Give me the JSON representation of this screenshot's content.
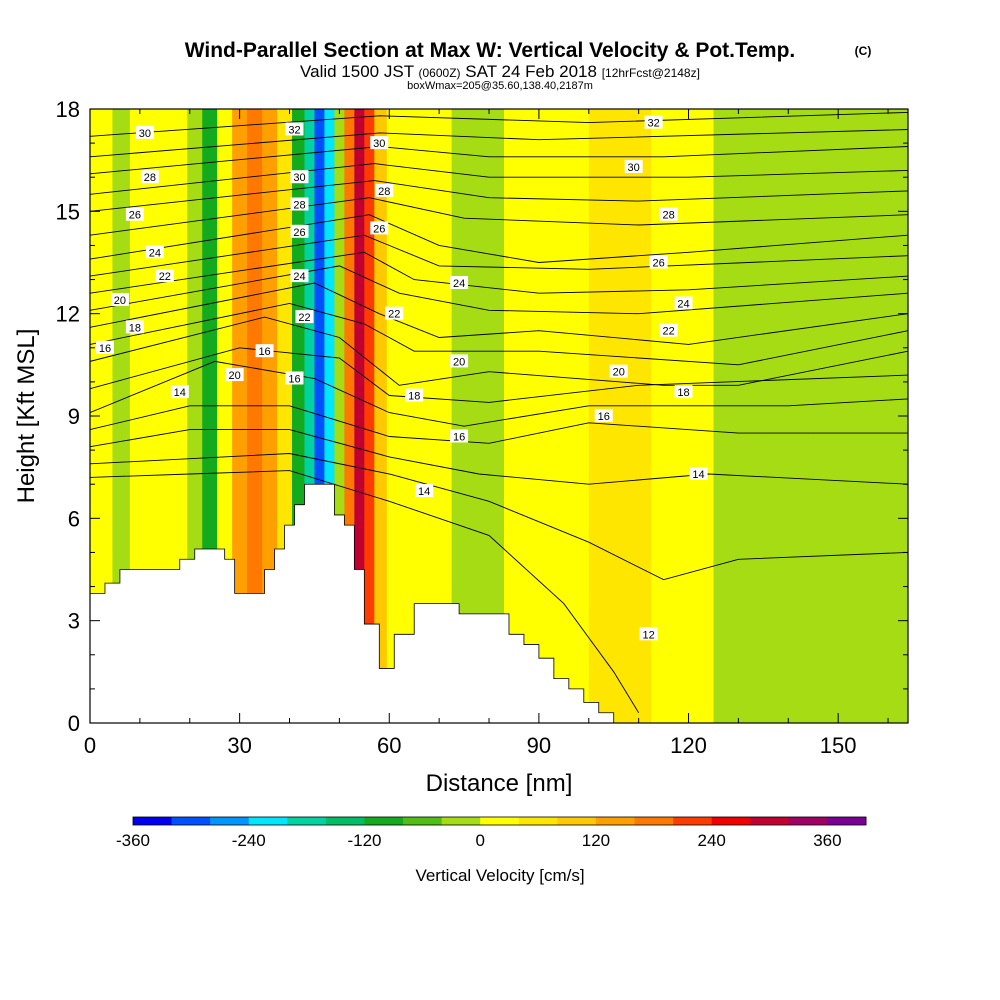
{
  "title": {
    "main": "Wind-Parallel Section at Max W: Vertical Velocity & Pot.Temp.",
    "copyright": "(C)",
    "valid_prefix": "Valid 1500 JST",
    "valid_zulu": "(0600Z)",
    "valid_date": "SAT 24 Feb 2018",
    "forecast": "[12hrFcst@2148z]",
    "box_info": "boxWmax=205@35.60,138.40,2187m"
  },
  "chart_data": {
    "type": "heatmap",
    "xlabel": "Distance [nm]",
    "ylabel": "Height [Kft MSL]",
    "xlim": [
      0,
      164
    ],
    "ylim": [
      0,
      18
    ],
    "xticks": [
      0,
      30,
      60,
      90,
      120,
      150
    ],
    "yticks": [
      0,
      3,
      6,
      9,
      12,
      15,
      18
    ],
    "colorbar": {
      "label": "Vertical Velocity [cm/s]",
      "levels": [
        -360,
        -320,
        -280,
        -240,
        -200,
        -160,
        -120,
        -80,
        -40,
        0,
        40,
        80,
        120,
        160,
        200,
        240,
        280,
        320,
        360,
        400
      ],
      "tick_labels": [
        "-360",
        "-240",
        "-120",
        "0",
        "120",
        "240",
        "360"
      ],
      "tick_values": [
        -360,
        -240,
        -120,
        0,
        120,
        240,
        360
      ],
      "colors": [
        "#0000f0",
        "#0050ff",
        "#0096ff",
        "#00e6ff",
        "#00d2a0",
        "#00be64",
        "#14aa1e",
        "#50be14",
        "#a5dc14",
        "#ffff00",
        "#ffe600",
        "#ffc800",
        "#ffa000",
        "#ff7800",
        "#ff3c00",
        "#f00000",
        "#c00030",
        "#a00064",
        "#780096"
      ]
    },
    "vertical_velocity_columns": [
      {
        "x": 0,
        "w": 20
      },
      {
        "x": 3,
        "w": 10
      },
      {
        "x": 6,
        "w": -20
      },
      {
        "x": 10,
        "w": 10
      },
      {
        "x": 14,
        "w": 10
      },
      {
        "x": 18,
        "w": 0
      },
      {
        "x": 21,
        "w": -40
      },
      {
        "x": 24,
        "w": -90
      },
      {
        "x": 27,
        "w": 10
      },
      {
        "x": 30,
        "w": 120
      },
      {
        "x": 33,
        "w": 160
      },
      {
        "x": 36,
        "w": 140
      },
      {
        "x": 39,
        "w": 40
      },
      {
        "x": 42,
        "w": -120
      },
      {
        "x": 44,
        "w": -200
      },
      {
        "x": 46,
        "w": -290
      },
      {
        "x": 48,
        "w": -210
      },
      {
        "x": 50,
        "w": -40
      },
      {
        "x": 52,
        "w": 180
      },
      {
        "x": 54,
        "w": 300
      },
      {
        "x": 56,
        "w": 230
      },
      {
        "x": 58,
        "w": 100
      },
      {
        "x": 61,
        "w": 10
      },
      {
        "x": 65,
        "w": 20
      },
      {
        "x": 70,
        "w": 0
      },
      {
        "x": 75,
        "w": -20
      },
      {
        "x": 80,
        "w": -30
      },
      {
        "x": 86,
        "w": 10
      },
      {
        "x": 95,
        "w": 20
      },
      {
        "x": 105,
        "w": 40
      },
      {
        "x": 110,
        "w": 60
      },
      {
        "x": 115,
        "w": 30
      },
      {
        "x": 120,
        "w": 10
      },
      {
        "x": 130,
        "w": -10
      },
      {
        "x": 140,
        "w": -20
      },
      {
        "x": 150,
        "w": -20
      },
      {
        "x": 160,
        "w": -10
      },
      {
        "x": 164,
        "w": -20
      }
    ],
    "terrain": [
      {
        "x": 0,
        "h": 3.8
      },
      {
        "x": 3,
        "h": 4.1
      },
      {
        "x": 6,
        "h": 4.5
      },
      {
        "x": 10,
        "h": 4.5
      },
      {
        "x": 14,
        "h": 4.5
      },
      {
        "x": 18,
        "h": 4.8
      },
      {
        "x": 21,
        "h": 5.1
      },
      {
        "x": 24,
        "h": 5.1
      },
      {
        "x": 27,
        "h": 4.8
      },
      {
        "x": 29,
        "h": 3.8
      },
      {
        "x": 33,
        "h": 3.8
      },
      {
        "x": 35,
        "h": 4.5
      },
      {
        "x": 37,
        "h": 5.1
      },
      {
        "x": 39,
        "h": 5.8
      },
      {
        "x": 41,
        "h": 6.4
      },
      {
        "x": 43,
        "h": 7.0
      },
      {
        "x": 45,
        "h": 7.0
      },
      {
        "x": 47,
        "h": 7.0
      },
      {
        "x": 49,
        "h": 6.1
      },
      {
        "x": 51,
        "h": 5.8
      },
      {
        "x": 53,
        "h": 4.5
      },
      {
        "x": 55,
        "h": 2.9
      },
      {
        "x": 58,
        "h": 1.6
      },
      {
        "x": 61,
        "h": 2.6
      },
      {
        "x": 65,
        "h": 3.5
      },
      {
        "x": 70,
        "h": 3.5
      },
      {
        "x": 74,
        "h": 3.2
      },
      {
        "x": 80,
        "h": 3.2
      },
      {
        "x": 84,
        "h": 2.6
      },
      {
        "x": 87,
        "h": 2.3
      },
      {
        "x": 90,
        "h": 1.9
      },
      {
        "x": 93,
        "h": 1.3
      },
      {
        "x": 96,
        "h": 1.0
      },
      {
        "x": 99,
        "h": 0.6
      },
      {
        "x": 102,
        "h": 0.3
      },
      {
        "x": 105,
        "h": 0.0
      },
      {
        "x": 164,
        "h": 0.0
      }
    ],
    "isentropes": [
      {
        "theta": 12,
        "label_at": [
          113,
          2.6
        ],
        "heights": [
          [
            0,
            7.2
          ],
          [
            20,
            7.3
          ],
          [
            40,
            7.4
          ],
          [
            60,
            6.5
          ],
          [
            80,
            5.5
          ],
          [
            95,
            3.5
          ],
          [
            105,
            1.5
          ],
          [
            110,
            0.3
          ]
        ]
      },
      {
        "theta": 13,
        "heights": [
          [
            0,
            7.6
          ],
          [
            40,
            7.9
          ],
          [
            60,
            7.3
          ],
          [
            80,
            6.5
          ],
          [
            100,
            5.3
          ],
          [
            115,
            4.2
          ],
          [
            130,
            4.8
          ],
          [
            164,
            5.0
          ]
        ]
      },
      {
        "theta": 14,
        "label_at": [
          21,
          9.7
        ],
        "heights": [
          [
            0,
            8.1
          ],
          [
            20,
            8.6
          ],
          [
            40,
            8.6
          ],
          [
            60,
            7.8
          ],
          [
            78,
            7.3
          ],
          [
            100,
            7.0
          ],
          [
            124,
            7.3
          ],
          [
            164,
            7.0
          ]
        ]
      },
      {
        "theta": 15,
        "heights": [
          [
            0,
            8.6
          ],
          [
            20,
            9.3
          ],
          [
            40,
            9.3
          ],
          [
            60,
            8.4
          ],
          [
            80,
            8.2
          ],
          [
            100,
            8.8
          ],
          [
            130,
            8.5
          ],
          [
            164,
            8.5
          ]
        ]
      },
      {
        "theta": 16,
        "label_at": [
          30,
          11.3
        ],
        "heights": [
          [
            0,
            9.1
          ],
          [
            25,
            10.6
          ],
          [
            45,
            10.1
          ],
          [
            60,
            9.1
          ],
          [
            75,
            8.7
          ],
          [
            100,
            9.3
          ],
          [
            140,
            9.3
          ],
          [
            164,
            9.5
          ]
        ]
      },
      {
        "theta": 17,
        "heights": [
          [
            0,
            9.8
          ],
          [
            30,
            11.0
          ],
          [
            50,
            10.7
          ],
          [
            60,
            9.6
          ],
          [
            80,
            9.4
          ],
          [
            110,
            9.9
          ],
          [
            164,
            10.2
          ]
        ]
      },
      {
        "theta": 18,
        "label_at": [
          9,
          11.6
        ],
        "heights": [
          [
            0,
            10.6
          ],
          [
            35,
            11.9
          ],
          [
            50,
            11.3
          ],
          [
            62,
            9.9
          ],
          [
            80,
            10.3
          ],
          [
            115,
            9.9
          ],
          [
            130,
            9.9
          ],
          [
            164,
            10.9
          ]
        ]
      },
      {
        "theta": 19,
        "heights": [
          [
            0,
            11.1
          ],
          [
            40,
            12.3
          ],
          [
            55,
            11.7
          ],
          [
            65,
            10.9
          ],
          [
            90,
            10.9
          ],
          [
            130,
            10.5
          ],
          [
            164,
            11.5
          ]
        ]
      },
      {
        "theta": 20,
        "label_at": [
          6,
          12.4
        ],
        "heights": [
          [
            0,
            11.6
          ],
          [
            45,
            12.9
          ],
          [
            58,
            12.0
          ],
          [
            70,
            11.3
          ],
          [
            90,
            11.5
          ],
          [
            120,
            11.1
          ],
          [
            164,
            12.0
          ]
        ]
      },
      {
        "theta": 21,
        "heights": [
          [
            0,
            12.1
          ],
          [
            50,
            13.4
          ],
          [
            62,
            12.6
          ],
          [
            80,
            12.1
          ],
          [
            110,
            12.0
          ],
          [
            164,
            12.6
          ]
        ]
      },
      {
        "theta": 22,
        "label_at": [
          14,
          12.9
        ],
        "heights": [
          [
            0,
            12.6
          ],
          [
            55,
            13.8
          ],
          [
            65,
            13.0
          ],
          [
            90,
            12.6
          ],
          [
            120,
            12.7
          ],
          [
            164,
            13.1
          ]
        ]
      },
      {
        "theta": 23,
        "heights": [
          [
            0,
            13.1
          ],
          [
            55,
            14.3
          ],
          [
            70,
            13.4
          ],
          [
            100,
            13.3
          ],
          [
            164,
            13.7
          ]
        ]
      },
      {
        "theta": 24,
        "label_at": [
          11,
          13.8
        ],
        "heights": [
          [
            0,
            13.6
          ],
          [
            56,
            14.9
          ],
          [
            70,
            14.0
          ],
          [
            90,
            13.5
          ],
          [
            120,
            13.8
          ],
          [
            164,
            14.3
          ]
        ]
      },
      {
        "theta": 25,
        "heights": [
          [
            0,
            14.3
          ],
          [
            56,
            15.4
          ],
          [
            75,
            14.8
          ],
          [
            110,
            14.6
          ],
          [
            164,
            14.9
          ]
        ]
      },
      {
        "theta": 26,
        "label_at": [
          9,
          14.9
        ],
        "heights": [
          [
            0,
            15.0
          ],
          [
            57,
            15.9
          ],
          [
            80,
            15.4
          ],
          [
            110,
            15.3
          ],
          [
            164,
            15.6
          ]
        ]
      },
      {
        "theta": 27,
        "heights": [
          [
            0,
            15.5
          ],
          [
            57,
            16.4
          ],
          [
            80,
            16.0
          ],
          [
            120,
            16.0
          ],
          [
            164,
            16.2
          ]
        ]
      },
      {
        "theta": 28,
        "label_at": [
          12,
          16.0
        ],
        "heights": [
          [
            0,
            16.1
          ],
          [
            58,
            16.9
          ],
          [
            80,
            16.6
          ],
          [
            115,
            16.6
          ],
          [
            164,
            16.9
          ]
        ]
      },
      {
        "theta": 29,
        "heights": [
          [
            0,
            16.6
          ],
          [
            58,
            17.3
          ],
          [
            90,
            17.1
          ],
          [
            164,
            17.4
          ]
        ]
      },
      {
        "theta": 30,
        "label_at": [
          11,
          17.3
        ],
        "heights": [
          [
            0,
            17.2
          ],
          [
            58,
            17.8
          ],
          [
            100,
            17.6
          ],
          [
            164,
            17.9
          ]
        ]
      }
    ],
    "contour_labels": [
      {
        "text": "30",
        "x": 11,
        "y": 17.3
      },
      {
        "text": "28",
        "x": 12,
        "y": 16.0
      },
      {
        "text": "26",
        "x": 9,
        "y": 14.9
      },
      {
        "text": "24",
        "x": 13,
        "y": 13.8
      },
      {
        "text": "22",
        "x": 15,
        "y": 13.1
      },
      {
        "text": "20",
        "x": 6,
        "y": 12.4
      },
      {
        "text": "18",
        "x": 9,
        "y": 11.6
      },
      {
        "text": "16",
        "x": 3,
        "y": 11.0
      },
      {
        "text": "14",
        "x": 18,
        "y": 9.7
      },
      {
        "text": "20",
        "x": 29,
        "y": 10.2
      },
      {
        "text": "16",
        "x": 35,
        "y": 10.9
      },
      {
        "text": "16",
        "x": 41,
        "y": 10.1
      },
      {
        "text": "32",
        "x": 41,
        "y": 17.4
      },
      {
        "text": "30",
        "x": 42,
        "y": 16.0
      },
      {
        "text": "28",
        "x": 42,
        "y": 15.2
      },
      {
        "text": "26",
        "x": 42,
        "y": 14.4
      },
      {
        "text": "24",
        "x": 42,
        "y": 13.1
      },
      {
        "text": "22",
        "x": 43,
        "y": 11.9
      },
      {
        "text": "30",
        "x": 58,
        "y": 17.0
      },
      {
        "text": "28",
        "x": 59,
        "y": 15.6
      },
      {
        "text": "26",
        "x": 58,
        "y": 14.5
      },
      {
        "text": "22",
        "x": 61,
        "y": 12.0
      },
      {
        "text": "18",
        "x": 65,
        "y": 9.6
      },
      {
        "text": "16",
        "x": 74,
        "y": 8.4
      },
      {
        "text": "14",
        "x": 67,
        "y": 6.8
      },
      {
        "text": "24",
        "x": 74,
        "y": 12.9
      },
      {
        "text": "20",
        "x": 74,
        "y": 10.6
      },
      {
        "text": "32",
        "x": 113,
        "y": 17.6
      },
      {
        "text": "30",
        "x": 109,
        "y": 16.3
      },
      {
        "text": "28",
        "x": 116,
        "y": 14.9
      },
      {
        "text": "26",
        "x": 114,
        "y": 13.5
      },
      {
        "text": "24",
        "x": 119,
        "y": 12.3
      },
      {
        "text": "22",
        "x": 116,
        "y": 11.5
      },
      {
        "text": "20",
        "x": 106,
        "y": 10.3
      },
      {
        "text": "18",
        "x": 119,
        "y": 9.7
      },
      {
        "text": "16",
        "x": 103,
        "y": 9.0
      },
      {
        "text": "14",
        "x": 122,
        "y": 7.3
      },
      {
        "text": "12",
        "x": 112,
        "y": 2.6
      }
    ]
  }
}
